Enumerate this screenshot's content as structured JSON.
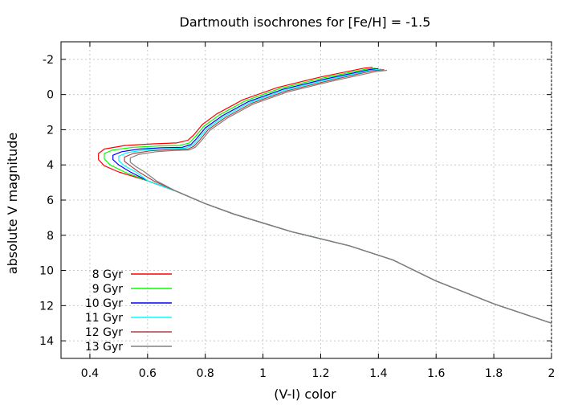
{
  "chart_data": {
    "type": "line",
    "title": "Dartmouth isochrones for [Fe/H] = -1.5",
    "xlabel": "(V-I) color",
    "ylabel": "absolute V magnitude",
    "xlim": [
      0.3,
      2.0
    ],
    "ylim": [
      15,
      -3
    ],
    "y_inverted": true,
    "grid": true,
    "legend_position": "bottom-left",
    "xticks": [
      0.4,
      0.6,
      0.8,
      1,
      1.2,
      1.4,
      1.6,
      1.8,
      2
    ],
    "xtick_labels": [
      "0.4",
      "0.6",
      "0.8",
      "1",
      "1.2",
      "1.4",
      "1.6",
      "1.8",
      "2"
    ],
    "yticks": [
      -2,
      0,
      2,
      4,
      6,
      8,
      10,
      12,
      14
    ],
    "ytick_labels": [
      "-2",
      "0",
      "2",
      "4",
      "6",
      "8",
      "10",
      "12",
      "14"
    ],
    "series": [
      {
        "name": "8 Gyr",
        "color": "#ff0000",
        "points": [
          [
            2.0,
            13.0
          ],
          [
            1.8,
            11.9
          ],
          [
            1.6,
            10.6
          ],
          [
            1.45,
            9.4
          ],
          [
            1.3,
            8.6
          ],
          [
            1.1,
            7.8
          ],
          [
            1.0,
            7.3
          ],
          [
            0.9,
            6.8
          ],
          [
            0.8,
            6.2
          ],
          [
            0.7,
            5.5
          ],
          [
            0.6,
            4.9
          ],
          [
            0.5,
            4.4
          ],
          [
            0.45,
            4.05
          ],
          [
            0.43,
            3.7
          ],
          [
            0.43,
            3.35
          ],
          [
            0.45,
            3.1
          ],
          [
            0.52,
            2.9
          ],
          [
            0.62,
            2.8
          ],
          [
            0.7,
            2.75
          ],
          [
            0.74,
            2.6
          ],
          [
            0.76,
            2.3
          ],
          [
            0.79,
            1.7
          ],
          [
            0.84,
            1.1
          ],
          [
            0.93,
            0.3
          ],
          [
            1.05,
            -0.4
          ],
          [
            1.2,
            -1.0
          ],
          [
            1.35,
            -1.5
          ],
          [
            1.38,
            -1.55
          ]
        ]
      },
      {
        "name": "9 Gyr",
        "color": "#00ff00",
        "points": [
          [
            2.0,
            13.0
          ],
          [
            1.8,
            11.9
          ],
          [
            1.6,
            10.6
          ],
          [
            1.45,
            9.4
          ],
          [
            1.3,
            8.6
          ],
          [
            1.1,
            7.8
          ],
          [
            1.0,
            7.3
          ],
          [
            0.9,
            6.8
          ],
          [
            0.8,
            6.2
          ],
          [
            0.7,
            5.5
          ],
          [
            0.6,
            4.9
          ],
          [
            0.52,
            4.4
          ],
          [
            0.47,
            4.0
          ],
          [
            0.45,
            3.65
          ],
          [
            0.45,
            3.35
          ],
          [
            0.48,
            3.15
          ],
          [
            0.55,
            3.0
          ],
          [
            0.64,
            2.92
          ],
          [
            0.71,
            2.9
          ],
          [
            0.745,
            2.75
          ],
          [
            0.765,
            2.4
          ],
          [
            0.795,
            1.8
          ],
          [
            0.85,
            1.15
          ],
          [
            0.94,
            0.35
          ],
          [
            1.06,
            -0.35
          ],
          [
            1.21,
            -0.95
          ],
          [
            1.36,
            -1.45
          ],
          [
            1.39,
            -1.5
          ]
        ]
      },
      {
        "name": "10 Gyr",
        "color": "#0000ff",
        "points": [
          [
            2.0,
            13.0
          ],
          [
            1.8,
            11.9
          ],
          [
            1.6,
            10.6
          ],
          [
            1.45,
            9.4
          ],
          [
            1.3,
            8.6
          ],
          [
            1.1,
            7.8
          ],
          [
            1.0,
            7.3
          ],
          [
            0.9,
            6.8
          ],
          [
            0.8,
            6.2
          ],
          [
            0.7,
            5.5
          ],
          [
            0.6,
            4.9
          ],
          [
            0.54,
            4.4
          ],
          [
            0.5,
            4.0
          ],
          [
            0.48,
            3.7
          ],
          [
            0.48,
            3.45
          ],
          [
            0.51,
            3.25
          ],
          [
            0.57,
            3.1
          ],
          [
            0.65,
            3.02
          ],
          [
            0.72,
            3.0
          ],
          [
            0.75,
            2.85
          ],
          [
            0.77,
            2.5
          ],
          [
            0.8,
            1.9
          ],
          [
            0.86,
            1.2
          ],
          [
            0.95,
            0.4
          ],
          [
            1.07,
            -0.3
          ],
          [
            1.22,
            -0.9
          ],
          [
            1.37,
            -1.42
          ],
          [
            1.4,
            -1.48
          ]
        ]
      },
      {
        "name": "11 Gyr",
        "color": "#00ffff",
        "points": [
          [
            2.0,
            13.0
          ],
          [
            1.8,
            11.9
          ],
          [
            1.6,
            10.6
          ],
          [
            1.45,
            9.4
          ],
          [
            1.3,
            8.6
          ],
          [
            1.1,
            7.8
          ],
          [
            1.0,
            7.3
          ],
          [
            0.9,
            6.8
          ],
          [
            0.8,
            6.2
          ],
          [
            0.7,
            5.5
          ],
          [
            0.6,
            4.9
          ],
          [
            0.56,
            4.4
          ],
          [
            0.52,
            4.05
          ],
          [
            0.5,
            3.75
          ],
          [
            0.5,
            3.5
          ],
          [
            0.53,
            3.3
          ],
          [
            0.59,
            3.15
          ],
          [
            0.66,
            3.08
          ],
          [
            0.73,
            3.05
          ],
          [
            0.755,
            2.9
          ],
          [
            0.775,
            2.55
          ],
          [
            0.805,
            1.95
          ],
          [
            0.865,
            1.25
          ],
          [
            0.955,
            0.45
          ],
          [
            1.075,
            -0.25
          ],
          [
            1.225,
            -0.85
          ],
          [
            1.375,
            -1.38
          ],
          [
            1.41,
            -1.45
          ]
        ]
      },
      {
        "name": "12 Gyr",
        "color": "#b04040",
        "points": [
          [
            2.0,
            13.0
          ],
          [
            1.8,
            11.9
          ],
          [
            1.6,
            10.6
          ],
          [
            1.45,
            9.4
          ],
          [
            1.3,
            8.6
          ],
          [
            1.1,
            7.8
          ],
          [
            1.0,
            7.3
          ],
          [
            0.9,
            6.8
          ],
          [
            0.8,
            6.2
          ],
          [
            0.7,
            5.5
          ],
          [
            0.62,
            4.9
          ],
          [
            0.57,
            4.4
          ],
          [
            0.54,
            4.05
          ],
          [
            0.52,
            3.8
          ],
          [
            0.52,
            3.55
          ],
          [
            0.55,
            3.35
          ],
          [
            0.61,
            3.2
          ],
          [
            0.68,
            3.13
          ],
          [
            0.74,
            3.1
          ],
          [
            0.76,
            2.95
          ],
          [
            0.78,
            2.6
          ],
          [
            0.81,
            2.0
          ],
          [
            0.87,
            1.3
          ],
          [
            0.96,
            0.5
          ],
          [
            1.08,
            -0.2
          ],
          [
            1.23,
            -0.8
          ],
          [
            1.38,
            -1.35
          ],
          [
            1.42,
            -1.42
          ]
        ]
      },
      {
        "name": "13 Gyr",
        "color": "#808080",
        "points": [
          [
            2.0,
            13.0
          ],
          [
            1.8,
            11.9
          ],
          [
            1.6,
            10.6
          ],
          [
            1.45,
            9.4
          ],
          [
            1.3,
            8.6
          ],
          [
            1.1,
            7.8
          ],
          [
            1.0,
            7.3
          ],
          [
            0.9,
            6.8
          ],
          [
            0.8,
            6.2
          ],
          [
            0.7,
            5.5
          ],
          [
            0.63,
            4.9
          ],
          [
            0.59,
            4.4
          ],
          [
            0.56,
            4.1
          ],
          [
            0.54,
            3.85
          ],
          [
            0.54,
            3.6
          ],
          [
            0.57,
            3.4
          ],
          [
            0.63,
            3.25
          ],
          [
            0.69,
            3.18
          ],
          [
            0.745,
            3.15
          ],
          [
            0.765,
            3.0
          ],
          [
            0.785,
            2.65
          ],
          [
            0.815,
            2.05
          ],
          [
            0.875,
            1.35
          ],
          [
            0.965,
            0.55
          ],
          [
            1.085,
            -0.15
          ],
          [
            1.235,
            -0.75
          ],
          [
            1.39,
            -1.3
          ],
          [
            1.43,
            -1.38
          ]
        ]
      }
    ]
  }
}
